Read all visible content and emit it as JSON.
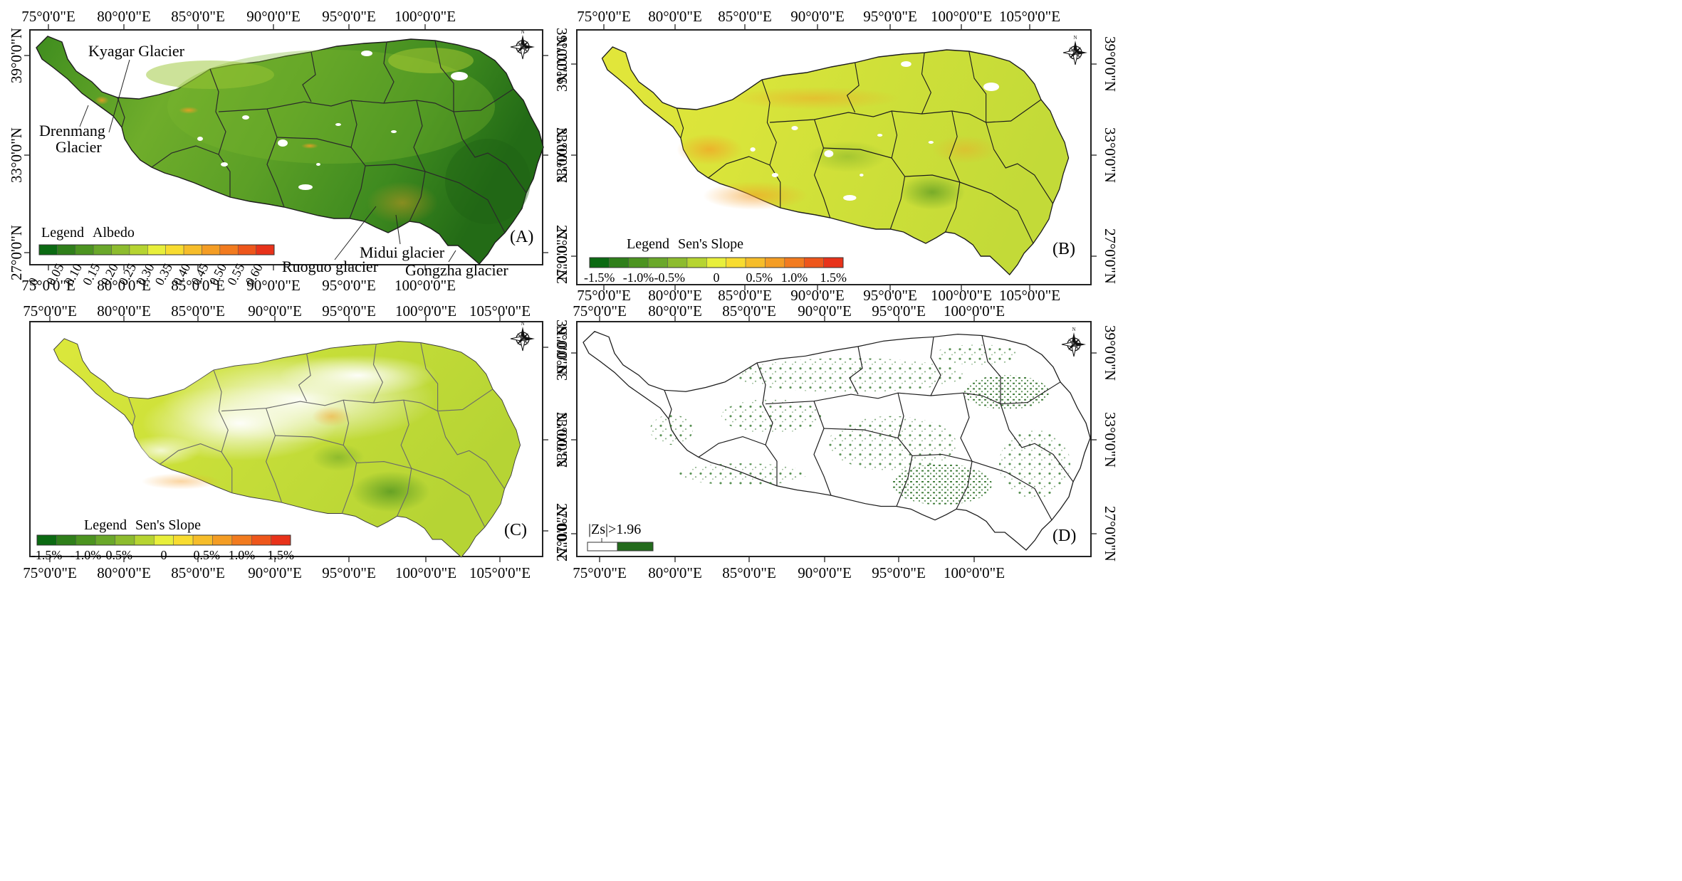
{
  "panels": [
    {
      "id": "A",
      "label": "(A)",
      "top_ticks": [
        "75°0'0\"E",
        "80°0'0\"E",
        "85°0'0\"E",
        "90°0'0\"E",
        "95°0'0\"E",
        "100°0'0\"E"
      ],
      "bottom_ticks": [
        "75°0'0\"E",
        "80°0'0\"E",
        "85°0'0\"E",
        "90°0'0\"E",
        "95°0'0\"E",
        "100°0'0\"E"
      ],
      "left_ticks": [
        "39°0'0\"N",
        "33°0'0\"N",
        "27°0'0\"N"
      ],
      "right_ticks": [
        "39°0'0\"N",
        "33°0'0\"N",
        "27°0'0\"N"
      ],
      "legend_title": "Legend",
      "legend_subtitle": "Albedo",
      "legend_labels": [
        "0",
        "0.05",
        "0.10",
        "0.15",
        "0.20",
        "0.25",
        "0.30",
        "0.35",
        "0.40",
        "0.45",
        "0.50",
        "0.55",
        "0.60"
      ],
      "legend_colors": [
        "#0b6a12",
        "#2f7f1a",
        "#4c9420",
        "#6aa82a",
        "#8dbc2e",
        "#b6d431",
        "#e8ef3b",
        "#f8dc30",
        "#f6bd2a",
        "#f49d24",
        "#f27b1f",
        "#ee561b",
        "#e8321a"
      ],
      "annotations": [
        "Kyagar Glacier",
        "Drenmang Glacier",
        "Ruoguo glacier",
        "Midui glacier",
        "Gongzha glacier"
      ]
    },
    {
      "id": "B",
      "label": "(B)",
      "top_ticks": [
        "75°0'0\"E",
        "80°0'0\"E",
        "85°0'0\"E",
        "90°0'0\"E",
        "95°0'0\"E",
        "100°0'0\"E",
        "105°0'0\"E"
      ],
      "bottom_ticks": [
        "75°0'0\"E",
        "80°0'0\"E",
        "85°0'0\"E",
        "90°0'0\"E",
        "95°0'0\"E",
        "100°0'0\"E",
        "105°0'0\"E"
      ],
      "left_ticks": [
        "39°0'0\"N",
        "33°0'0\"N",
        "27°0'0\"N"
      ],
      "right_ticks": [
        "39°0'0\"N",
        "33°0'0\"N",
        "27°0'0\"N"
      ],
      "legend_title": "Legend",
      "legend_subtitle": "Sen's Slope",
      "legend_labels": [
        "-1.5%",
        "-1.0%",
        "-0.5%",
        "0",
        "0.5%",
        "1.0%",
        "1.5%"
      ],
      "legend_colors": [
        "#0b6a12",
        "#2f7f1a",
        "#4c9420",
        "#6aa82a",
        "#8dbc2e",
        "#b6d431",
        "#e8ef3b",
        "#f8dc30",
        "#f6bd2a",
        "#f49d24",
        "#f27b1f",
        "#ee561b",
        "#e8321a"
      ]
    },
    {
      "id": "C",
      "label": "(C)",
      "top_ticks": [
        "75°0'0\"E",
        "80°0'0\"E",
        "85°0'0\"E",
        "90°0'0\"E",
        "95°0'0\"E",
        "100°0'0\"E",
        "105°0'0\"E"
      ],
      "bottom_ticks": [
        "75°0'0\"E",
        "80°0'0\"E",
        "85°0'0\"E",
        "90°0'0\"E",
        "95°0'0\"E",
        "100°0'0\"E",
        "105°0'0\"E"
      ],
      "right_ticks": [
        "39°0'0\"N",
        "33°0'0\"N",
        "27°0'0\"N"
      ],
      "legend_title": "Legend",
      "legend_subtitle": "Sen's Slope",
      "legend_labels": [
        "-1.5%",
        "-1.0%",
        "-0.5%",
        "0",
        "0.5%",
        "1.0%",
        "1.5%"
      ],
      "legend_colors": [
        "#0b6a12",
        "#2f7f1a",
        "#4c9420",
        "#6aa82a",
        "#8dbc2e",
        "#b6d431",
        "#e8ef3b",
        "#f8dc30",
        "#f6bd2a",
        "#f49d24",
        "#f27b1f",
        "#ee561b",
        "#e8321a"
      ]
    },
    {
      "id": "D",
      "label": "(D)",
      "top_ticks": [
        "75°0'0\"E",
        "80°0'0\"E",
        "85°0'0\"E",
        "90°0'0\"E",
        "95°0'0\"E",
        "100°0'0\"E"
      ],
      "bottom_ticks": [
        "75°0'0\"E",
        "80°0'0\"E",
        "85°0'0\"E",
        "90°0'0\"E",
        "95°0'0\"E",
        "100°0'0\"E"
      ],
      "left_ticks": [
        "39°0'0\"N",
        "33°0'0\"N",
        "27°0'0\"N"
      ],
      "right_ticks": [
        "39°0'0\"N",
        "33°0'0\"N",
        "27°0'0\"N"
      ],
      "legend_title": "|Zs|>1.96",
      "legend_colors": [
        "#ffffff",
        "#236b1c"
      ]
    }
  ],
  "colors": {
    "frame": "#222222",
    "boundary": "#1c1c1c",
    "lakes": "#ffffff",
    "sig_green": "#236b1c"
  },
  "icons": [
    "compass-rose-icon"
  ]
}
